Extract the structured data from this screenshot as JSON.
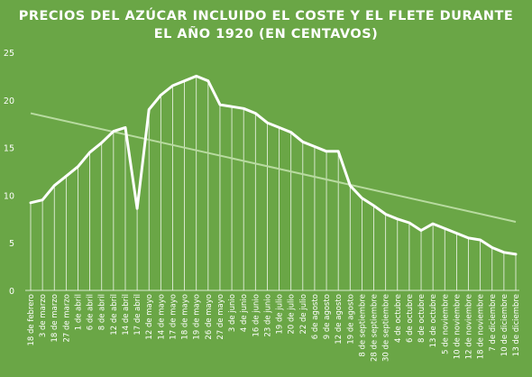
{
  "colors": {
    "background": "#6aa646",
    "line": "#ffffff",
    "trendline": "#b8dba0"
  },
  "chart_data": {
    "type": "line",
    "title_line1": "PRECIOS DEL AZÚCAR INCLUIDO EL COSTE Y EL FLETE DURANTE",
    "title_line2": "EL AÑO 1920 (EN CENTAVOS)",
    "xlabel": "",
    "ylabel": "",
    "ylim": [
      0,
      25
    ],
    "yticks": [
      0,
      5,
      10,
      15,
      20,
      25
    ],
    "grid": false,
    "drop_lines": true,
    "trendline": {
      "type": "linear",
      "start": 18.6,
      "end": 7.2
    },
    "categories": [
      "18 de febrero",
      "3 de marzo",
      "18 de marzo",
      "27 de marzo",
      "1 de abril",
      "6 de abril",
      "8 de abril",
      "12 de abril",
      "14 de abril",
      "17 de abril",
      "12 de mayo",
      "14 de mayo",
      "17 de mayo",
      "18 de mayo",
      "19 de mayo",
      "26 de mayo",
      "27 de mayo",
      "3 de junio",
      "4 de junio",
      "16 de junio",
      "23 de junio",
      "19 de julio",
      "20 de julio",
      "22 de julio",
      "6 de agosto",
      "9 de agosto",
      "12 de agosto",
      "19 de agosto",
      "8 de septiembre",
      "28 de septiembre",
      "30 de septiembre",
      "4 de octubre",
      "6 de octubre",
      "8 de octubre",
      "13 de octubre",
      "5 de noviembre",
      "10 de noviembre",
      "12 de noviembre",
      "18 de noviembre",
      "7 de diciembre",
      "10 de diciembre",
      "13 de diciembre"
    ],
    "values": [
      9.2,
      9.5,
      11.0,
      12.0,
      13.0,
      14.5,
      15.5,
      16.7,
      17.1,
      8.6,
      19.0,
      20.5,
      21.5,
      22.0,
      22.5,
      22.0,
      19.5,
      19.3,
      19.1,
      18.6,
      17.6,
      17.1,
      16.6,
      15.6,
      15.1,
      14.6,
      14.6,
      11.0,
      9.7,
      8.9,
      8.0,
      7.5,
      7.1,
      6.3,
      7.0,
      6.5,
      6.0,
      5.5,
      5.3,
      4.5,
      4.0,
      3.8
    ]
  }
}
